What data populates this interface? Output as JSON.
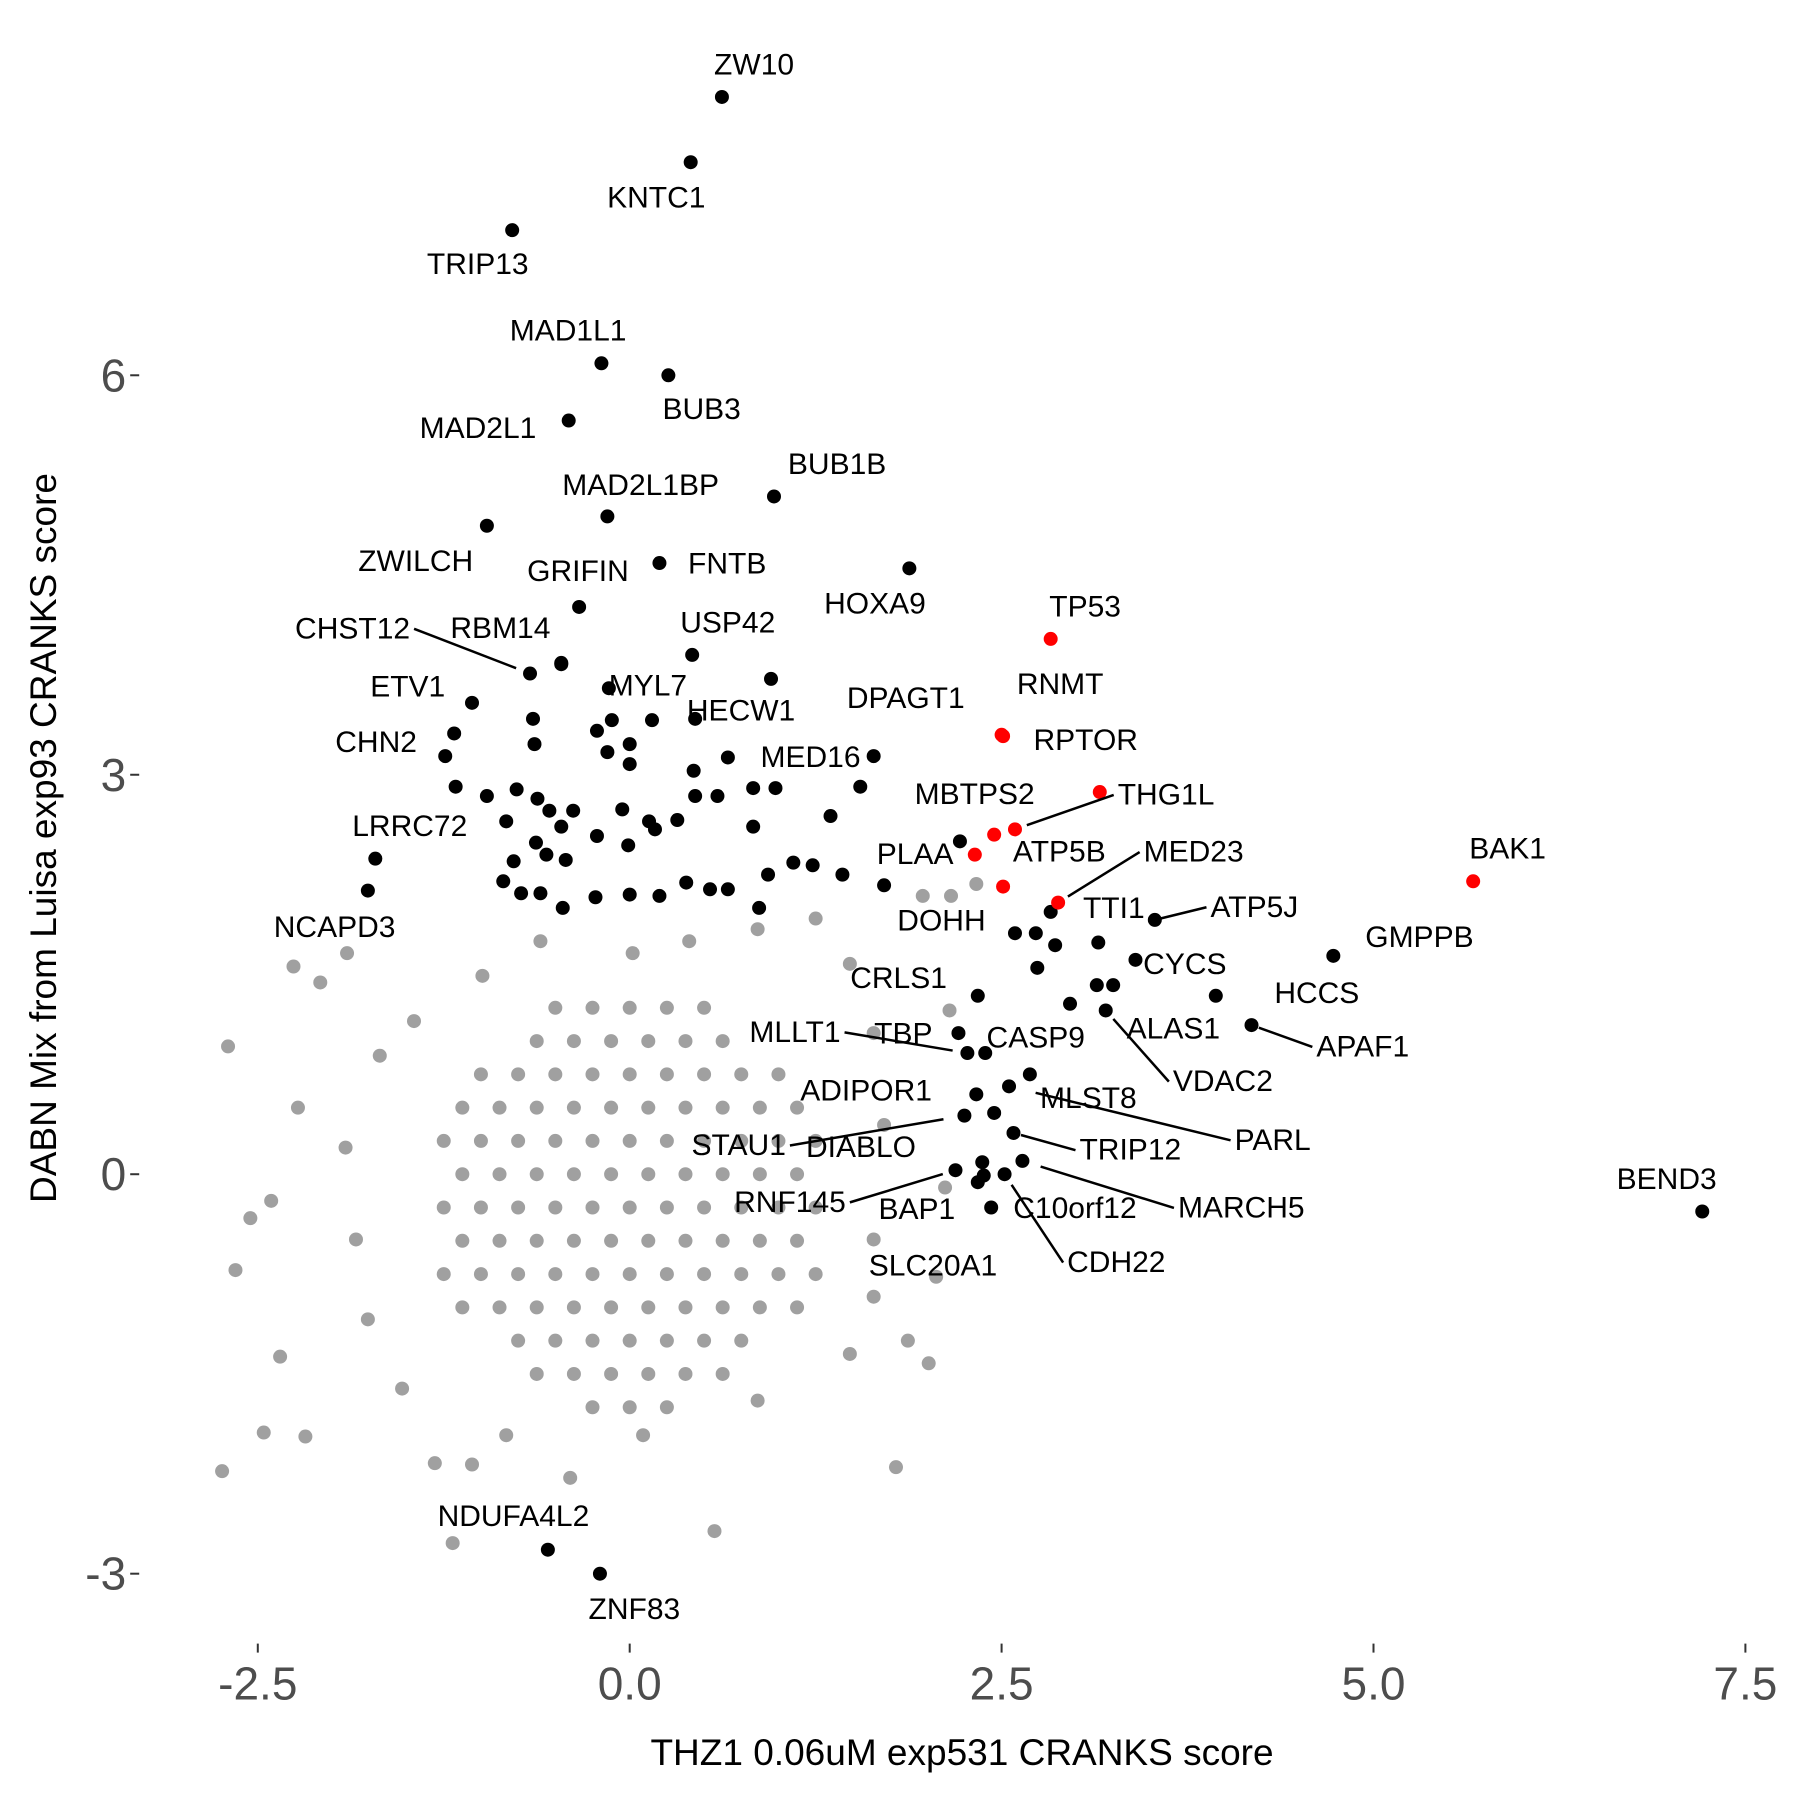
{
  "chart_data": {
    "type": "scatter",
    "x_label": "THZ1 0.06uM exp531 CRANKS score",
    "y_label": "DABN Mix from Luisa exp93 CRANKS score",
    "xlim": [
      -3.23,
      7.82
    ],
    "ylim": [
      -3.51,
      8.56
    ],
    "xticks": [
      -2.5,
      {
        "value": 0,
        "label": "0.0"
      },
      2.5,
      {
        "value": 5,
        "label": "5.0"
      },
      7.5
    ],
    "yticks": [
      -3,
      0,
      3,
      6
    ],
    "grid": false,
    "series": [
      {
        "color": "#a0a0a0",
        "x": [
          -0.5,
          -0.25,
          0,
          0.25,
          0.5,
          -0.625,
          -0.375,
          -0.125,
          0.125,
          0.375,
          0.625,
          -1,
          -0.75,
          -0.5,
          -0.25,
          0,
          0.25,
          0.5,
          0.75,
          1,
          -1.125,
          -0.875,
          -0.625,
          -0.375,
          -0.125,
          0.125,
          0.375,
          0.625,
          0.875,
          1.125,
          -1.25,
          -1,
          -0.75,
          -0.5,
          -0.25,
          0,
          0.25,
          0.5,
          0.75,
          1,
          1.25,
          -1.125,
          -0.875,
          -0.625,
          -0.375,
          -0.125,
          0.125,
          0.375,
          0.625,
          0.875,
          1.125,
          -1.25,
          -1,
          -0.75,
          -0.5,
          -0.25,
          0,
          0.25,
          0.5,
          0.75,
          1,
          1.25,
          -1.125,
          -0.875,
          -0.625,
          -0.375,
          -0.125,
          0.125,
          0.375,
          0.625,
          0.875,
          1.125,
          -1.25,
          -1,
          -0.75,
          -0.5,
          -0.25,
          0,
          0.25,
          0.5,
          0.75,
          1,
          1.25,
          -1.125,
          -0.875,
          -0.625,
          -0.375,
          -0.125,
          0.125,
          0.375,
          0.625,
          0.875,
          1.125,
          -0.75,
          -0.5,
          -0.25,
          0,
          0.25,
          0.5,
          0.75,
          -0.625,
          -0.375,
          -0.125,
          0.125,
          0.375,
          0.625,
          -0.25,
          0,
          0.25,
          -2.7,
          -2.74,
          -2.65,
          -2.46,
          -2.18,
          -2.35,
          -2.55,
          -2.41,
          -2.23,
          -2.08,
          -2.26,
          -1.9,
          -1.19,
          -1.06,
          -1.31,
          -0.4,
          0.57,
          1.79,
          2.01,
          1.87,
          2.06,
          2.12,
          2.15,
          1.97,
          2.16,
          2.33,
          1.25,
          0.86,
          0.4,
          -0.6,
          -0.99,
          -1.45,
          -1.68,
          -1.91,
          -1.84,
          -1.76,
          -1.53,
          -0.83,
          0.09,
          0.86,
          1.48,
          1.64,
          1.71,
          1.64,
          1.48,
          0.02,
          1.64
        ],
        "values": [
          1.25,
          1.25,
          1.25,
          1.25,
          1.25,
          1,
          1,
          1,
          1,
          1,
          1,
          0.75,
          0.75,
          0.75,
          0.75,
          0.75,
          0.75,
          0.75,
          0.75,
          0.75,
          0.5,
          0.5,
          0.5,
          0.5,
          0.5,
          0.5,
          0.5,
          0.5,
          0.5,
          0.5,
          0.25,
          0.25,
          0.25,
          0.25,
          0.25,
          0.25,
          0.25,
          0.25,
          0.25,
          0.25,
          0.25,
          0,
          0,
          0,
          0,
          0,
          0,
          0,
          0,
          0,
          0,
          -0.25,
          -0.25,
          -0.25,
          -0.25,
          -0.25,
          -0.25,
          -0.25,
          -0.25,
          -0.25,
          -0.25,
          -0.25,
          -0.5,
          -0.5,
          -0.5,
          -0.5,
          -0.5,
          -0.5,
          -0.5,
          -0.5,
          -0.5,
          -0.5,
          -0.75,
          -0.75,
          -0.75,
          -0.75,
          -0.75,
          -0.75,
          -0.75,
          -0.75,
          -0.75,
          -0.75,
          -0.75,
          -1,
          -1,
          -1,
          -1,
          -1,
          -1,
          -1,
          -1,
          -1,
          -1,
          -1.25,
          -1.25,
          -1.25,
          -1.25,
          -1.25,
          -1.25,
          -1.25,
          -1.5,
          -1.5,
          -1.5,
          -1.5,
          -1.5,
          -1.5,
          -1.75,
          -1.75,
          -1.75,
          0.96,
          -2.23,
          -0.72,
          -1.94,
          -1.97,
          -1.37,
          -0.33,
          -0.2,
          0.5,
          1.44,
          1.56,
          1.66,
          -2.77,
          -2.18,
          -2.17,
          -2.28,
          -2.68,
          -2.2,
          -1.42,
          -1.25,
          -0.77,
          -0.1,
          1.23,
          2.09,
          2.09,
          2.18,
          1.92,
          1.84,
          1.75,
          1.75,
          1.49,
          1.15,
          0.89,
          0.2,
          -0.49,
          -1.09,
          -1.61,
          -1.96,
          -1.96,
          -1.7,
          -1.35,
          -0.49,
          0.37,
          1.06,
          1.58,
          1.66,
          -0.92
        ]
      },
      {
        "color": "#000000",
        "x": [
          0.62,
          0.41,
          -0.79,
          -0.19,
          0.26,
          -0.41,
          -0.15,
          0.97,
          -0.96,
          0.2,
          -0.34,
          1.88,
          -0.67,
          -0.46,
          0.42,
          -1.06,
          -0.14,
          0.44,
          1.64,
          -1.18,
          0.66,
          -1.71,
          -1.76,
          2.83,
          3.53,
          1.71,
          4.73,
          3.4,
          2.34,
          3.94,
          2.96,
          3.2,
          4.18,
          2.27,
          2.21,
          2.39,
          2.33,
          2.69,
          2.55,
          2.25,
          2.45,
          2.58,
          2.64,
          2.19,
          2.37,
          2.43,
          2.52,
          2.34,
          7.21,
          -0.55,
          -0.2,
          -0.46,
          -0.65,
          -1.17,
          -1.24,
          -0.96,
          -0.83,
          -0.76,
          -0.62,
          -0.54,
          -0.46,
          -0.64,
          -0.22,
          -0.15,
          0,
          0.15,
          -0.12,
          0,
          0.43,
          0.59,
          0.44,
          0.32,
          0.17,
          0.13,
          -0.01,
          -0.05,
          -0.22,
          -0.38,
          -0.43,
          -0.56,
          -0.63,
          -0.78,
          -0.85,
          -0.73,
          -0.6,
          -0.45,
          -0.23,
          0,
          0.2,
          0.38,
          0.54,
          0.66,
          0.87,
          0.93,
          1.1,
          1.23,
          1.43,
          1.35,
          0.83,
          0.98,
          0.83,
          1.55,
          2.22,
          2.59,
          2.73,
          2.86,
          2.74,
          3.15,
          3.14,
          3.25,
          2.38,
          0.95
        ],
        "values": [
          8.09,
          7.6,
          7.09,
          6.09,
          6,
          5.66,
          4.94,
          5.09,
          4.87,
          4.59,
          4.26,
          4.55,
          3.76,
          3.84,
          3.9,
          3.54,
          3.65,
          3.42,
          3.14,
          3.31,
          3.13,
          2.37,
          2.13,
          1.97,
          1.91,
          2.17,
          1.64,
          1.61,
          1.34,
          1.34,
          1.28,
          1.23,
          1.12,
          0.91,
          1.06,
          0.91,
          0.6,
          0.75,
          0.66,
          0.44,
          0.46,
          0.31,
          0.1,
          0.03,
          0.09,
          -0.25,
          0,
          -0.06,
          -0.28,
          -2.82,
          -3,
          3.83,
          3.42,
          2.91,
          3.14,
          2.84,
          2.65,
          2.89,
          2.82,
          2.73,
          2.61,
          3.23,
          3.33,
          3.17,
          3.23,
          3.41,
          3.41,
          3.08,
          3.03,
          2.84,
          2.84,
          2.66,
          2.59,
          2.65,
          2.47,
          2.74,
          2.54,
          2.73,
          2.36,
          2.4,
          2.49,
          2.35,
          2.2,
          2.11,
          2.11,
          2,
          2.08,
          2.1,
          2.09,
          2.19,
          2.14,
          2.14,
          2,
          2.25,
          2.34,
          2.32,
          2.25,
          2.69,
          2.9,
          2.9,
          2.61,
          2.91,
          2.5,
          1.81,
          1.81,
          1.72,
          1.55,
          1.74,
          1.42,
          1.42,
          -0.01,
          3.72
        ],
        "labels": [
          "ZW10",
          "KNTC1",
          "TRIP13",
          "MAD1L1",
          "BUB3",
          "MAD2L1",
          "MAD2L1BP",
          "BUB1B",
          "ZWILCH",
          "FNTB",
          "GRIFIN",
          "HOXA9",
          "CHST12",
          "RBM14",
          "USP42",
          "ETV1",
          "MYL7",
          "HECW1",
          "DPAGT1",
          "CHN2",
          "MED16",
          "LRRC72",
          "NCAPD3",
          "TTI1",
          "ATP5J",
          "DOHH",
          "GMPPB",
          "CYCS",
          "CRLS1",
          "HCCS",
          "ALAS1",
          "VDAC2",
          "APAF1",
          "MLLT1",
          "TBP",
          "CASP9",
          "ADIPOR1",
          "MLST8",
          "PARL",
          "STAU1",
          "DIABLO",
          "TRIP12",
          "MARCH5",
          "RNF145",
          "BAP1",
          "C10orf12",
          "CDH22",
          "SLC20A1",
          "BEND3",
          "NDUFA4L2",
          "ZNF83",
          null,
          null,
          null,
          null,
          null,
          null,
          null,
          null,
          null,
          null,
          null,
          null,
          null,
          null,
          null,
          null,
          null,
          null,
          null,
          null,
          null,
          null,
          null,
          null,
          null,
          null,
          null,
          null,
          null,
          null,
          null,
          null,
          null,
          null,
          null,
          null,
          null,
          null,
          null,
          null,
          null,
          null,
          null,
          null,
          null,
          null,
          null,
          null,
          null,
          null,
          null,
          null,
          null,
          null,
          null,
          null
        ]
      },
      {
        "color": "#ff0000",
        "x": [
          2.83,
          2.5,
          2.51,
          2.59,
          2.45,
          2.32,
          2.51,
          2.88,
          5.67,
          3.16
        ],
        "values": [
          4.02,
          3.3,
          3.29,
          2.59,
          2.55,
          2.4,
          2.16,
          2.04,
          2.2,
          2.87
        ],
        "labels": [
          "TP53",
          "RNMT",
          "RPTOR",
          "THG1L",
          "MBTPS2",
          "PLAA",
          "ATP5B",
          "MED23",
          "BAK1",
          null
        ]
      }
    ]
  }
}
